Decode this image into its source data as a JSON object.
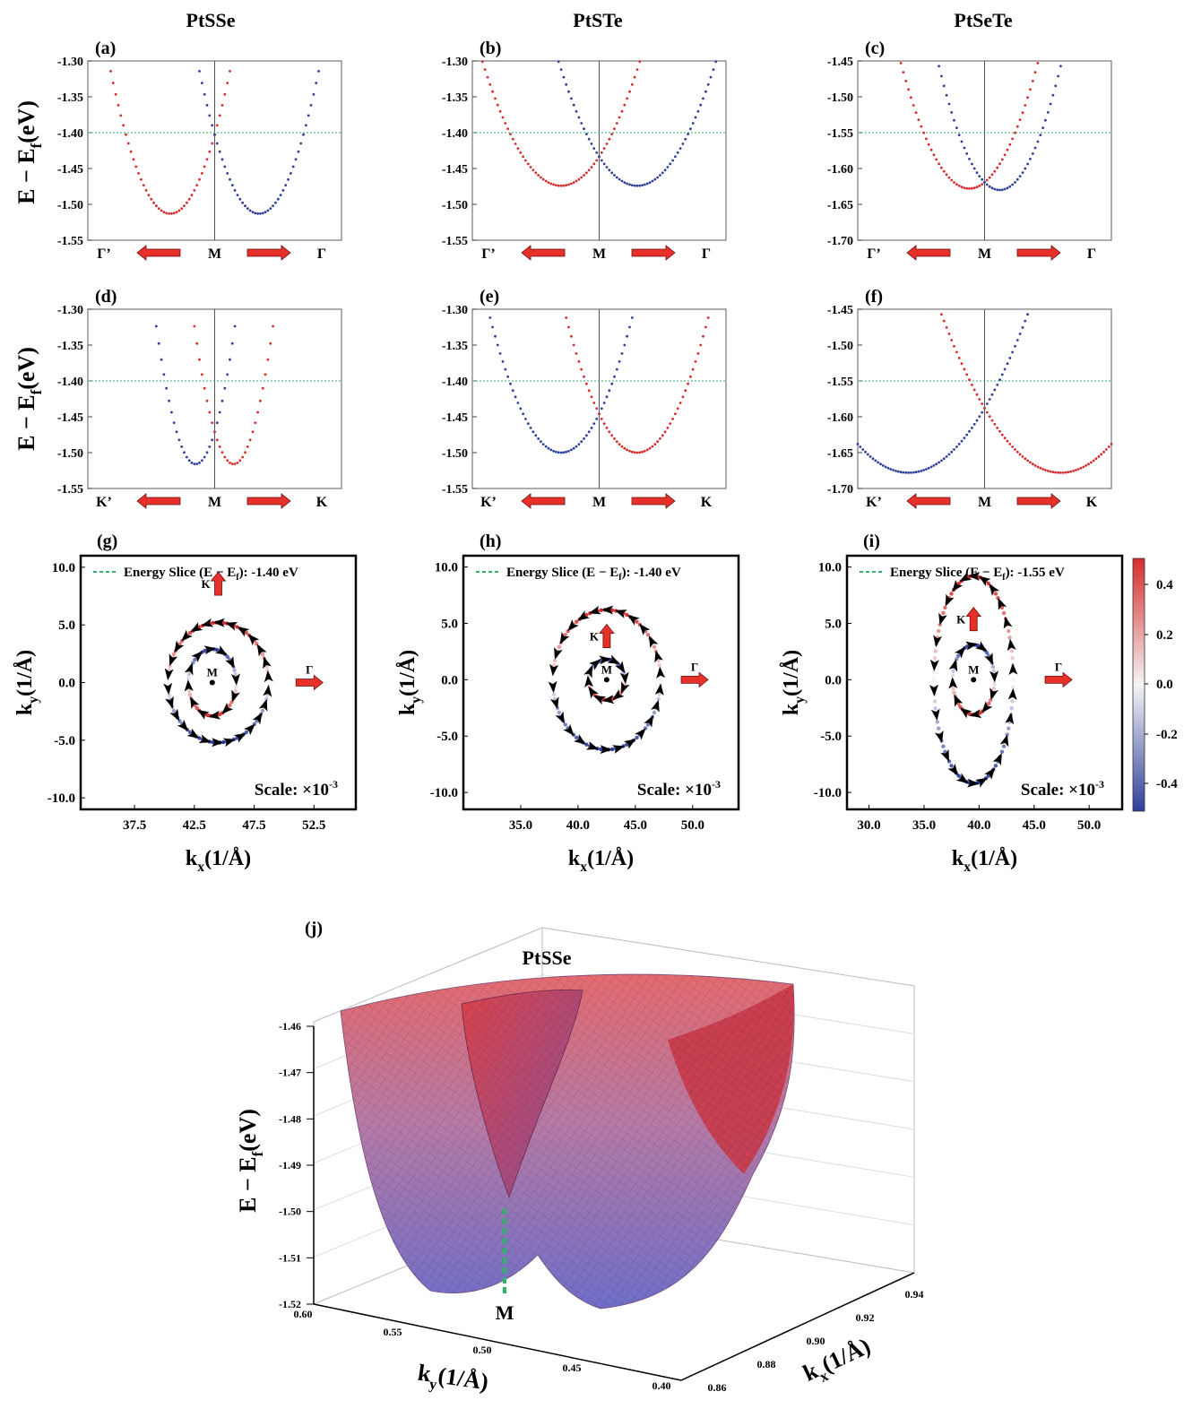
{
  "colors": {
    "red": "#d62c2c",
    "blue": "#2f3f9a",
    "slice": "#2fb36a",
    "arrow": "#e8302a",
    "axis": "#000000"
  },
  "column_titles": [
    "PtSSe",
    "PtSTe",
    "PtSeTe"
  ],
  "band_ylabel": "E − E",
  "band_ylabel_sub": "f",
  "band_ylabel_unit": "(eV)",
  "kx_label": "k",
  "kx_sub": "x",
  "k_unit": "(1/Å)",
  "ky_label": "k",
  "ky_sub": "y",
  "scale_label": "Scale: ×10",
  "scale_exp": "-3",
  "slice_legend_prefix": "Energy Slice (E − E",
  "slice_legend_sub": "f",
  "colorbar_ticks": [
    "0.4",
    "0.2",
    "0.0",
    "-0.2",
    "-0.4"
  ],
  "chart_data": [
    {
      "panel": "(a)",
      "type": "line",
      "ylim": [
        -1.55,
        -1.3
      ],
      "yticks": [
        "-1.30",
        "-1.35",
        "-1.40",
        "-1.45",
        "-1.50",
        "-1.55"
      ],
      "xlabels": [
        "Γ’",
        "M",
        "Γ"
      ],
      "slice": -1.4,
      "series": [
        {
          "color": "red",
          "min_k": -0.35,
          "min_E": -1.513,
          "curv": 0.9
        },
        {
          "color": "blue",
          "min_k": 0.35,
          "min_E": -1.513,
          "curv": 0.9
        }
      ]
    },
    {
      "panel": "(b)",
      "type": "line",
      "ylim": [
        -1.55,
        -1.3
      ],
      "yticks": [
        "-1.30",
        "-1.35",
        "-1.40",
        "-1.45",
        "-1.50",
        "-1.55"
      ],
      "xlabels": [
        "Γ’",
        "M",
        "Γ"
      ],
      "slice": -1.4,
      "series": [
        {
          "color": "red",
          "min_k": -0.3,
          "min_E": -1.474,
          "curv": 0.45
        },
        {
          "color": "blue",
          "min_k": 0.3,
          "min_E": -1.474,
          "curv": 0.45
        }
      ]
    },
    {
      "panel": "(c)",
      "type": "line",
      "ylim": [
        -1.7,
        -1.45
      ],
      "yticks": [
        "-1.45",
        "-1.50",
        "-1.55",
        "-1.60",
        "-1.65",
        "-1.70"
      ],
      "xlabels": [
        "Γ’",
        "M",
        "Γ"
      ],
      "slice": -1.55,
      "series": [
        {
          "color": "red",
          "min_k": -0.12,
          "min_E": -1.628,
          "curv": 0.6
        },
        {
          "color": "blue",
          "min_k": 0.12,
          "min_E": -1.63,
          "curv": 0.75
        }
      ]
    },
    {
      "panel": "(d)",
      "type": "line",
      "ylim": [
        -1.55,
        -1.3
      ],
      "yticks": [
        "-1.30",
        "-1.35",
        "-1.40",
        "-1.45",
        "-1.50",
        "-1.55"
      ],
      "xlabels": [
        "K’",
        "M",
        "K"
      ],
      "slice": -1.4,
      "series": [
        {
          "color": "blue",
          "min_k": -0.15,
          "min_E": -1.516,
          "curv": 2.0
        },
        {
          "color": "red",
          "min_k": 0.15,
          "min_E": -1.516,
          "curv": 2.0
        }
      ]
    },
    {
      "panel": "(e)",
      "type": "line",
      "ylim": [
        -1.55,
        -1.3
      ],
      "yticks": [
        "-1.30",
        "-1.35",
        "-1.40",
        "-1.45",
        "-1.50",
        "-1.55"
      ],
      "xlabels": [
        "K’",
        "M",
        "K"
      ],
      "slice": -1.4,
      "series": [
        {
          "color": "blue",
          "min_k": -0.3,
          "min_E": -1.5,
          "curv": 0.6
        },
        {
          "color": "red",
          "min_k": 0.3,
          "min_E": -1.5,
          "curv": 0.6
        }
      ]
    },
    {
      "panel": "(f)",
      "type": "line",
      "ylim": [
        -1.7,
        -1.45
      ],
      "yticks": [
        "-1.45",
        "-1.50",
        "-1.55",
        "-1.60",
        "-1.65",
        "-1.70"
      ],
      "xlabels": [
        "K’",
        "M",
        "K"
      ],
      "slice": -1.55,
      "series": [
        {
          "color": "blue",
          "min_k": -0.6,
          "min_E": -1.678,
          "curv": 0.25
        },
        {
          "color": "red",
          "min_k": 0.6,
          "min_E": -1.678,
          "curv": 0.25
        }
      ]
    },
    {
      "panel": "(g)",
      "type": "scatter",
      "slice_value": "-1.40 eV",
      "xlim": [
        33,
        56
      ],
      "ylim": [
        -11,
        11
      ],
      "xticks": [
        "37.5",
        "42.5",
        "47.5",
        "52.5"
      ],
      "yticks": [
        "10.0",
        "5.0",
        "0.0",
        "-5.0",
        "-10.0"
      ],
      "outer": {
        "cx": 44.5,
        "cy": 0.0,
        "rx": 4.2,
        "ry": 5.2
      },
      "inner": {
        "cx": 44.0,
        "cy": 0.0,
        "rx": 2.0,
        "ry": 2.9
      },
      "M": [
        44,
        0
      ],
      "K_arrow": [
        44.5,
        8.5
      ],
      "G_arrow": [
        51,
        0
      ]
    },
    {
      "panel": "(h)",
      "type": "scatter",
      "slice_value": "-1.40 eV",
      "xlim": [
        30,
        54
      ],
      "ylim": [
        -11.5,
        11
      ],
      "xticks": [
        "35.0",
        "40.0",
        "45.0",
        "50.0"
      ],
      "yticks": [
        "10.0",
        "5.0",
        "0.0",
        "-5.0",
        "-10.0"
      ],
      "outer": {
        "cx": 42.5,
        "cy": 0.0,
        "rx": 4.7,
        "ry": 6.2
      },
      "inner": {
        "cx": 42.5,
        "cy": 0.0,
        "rx": 1.6,
        "ry": 1.8
      },
      "M": [
        42.5,
        0
      ],
      "K_arrow": [
        42.5,
        3.8
      ],
      "G_arrow": [
        49,
        0
      ]
    },
    {
      "panel": "(i)",
      "type": "scatter",
      "slice_value": "-1.55 eV",
      "xlim": [
        28,
        53
      ],
      "ylim": [
        -11.5,
        11
      ],
      "xticks": [
        "30.0",
        "35.0",
        "40.0",
        "45.0",
        "50.0"
      ],
      "yticks": [
        "10.0",
        "5.0",
        "0.0",
        "-5.0",
        "-10.0"
      ],
      "outer": {
        "cx": 39.5,
        "cy": 0.0,
        "rx": 3.6,
        "ry": 9.2
      },
      "inner": {
        "cx": 39.5,
        "cy": 0.0,
        "rx": 1.9,
        "ry": 3.1
      },
      "M": [
        39.5,
        0
      ],
      "K_arrow": [
        39.5,
        5.3
      ],
      "G_arrow": [
        46,
        0
      ]
    },
    {
      "panel": "(j)",
      "type": "surface",
      "title": "PtSSe",
      "zlabel": "E − E",
      "zticks": [
        "-1.46",
        "-1.47",
        "-1.48",
        "-1.49",
        "-1.50",
        "-1.51",
        "-1.52"
      ],
      "ky_ticks": [
        "0.60",
        "0.55",
        "0.50",
        "0.45",
        "0.40"
      ],
      "kx_ticks": [
        "0.86",
        "0.88",
        "0.90",
        "0.92",
        "0.94"
      ],
      "M_label": "M"
    }
  ]
}
